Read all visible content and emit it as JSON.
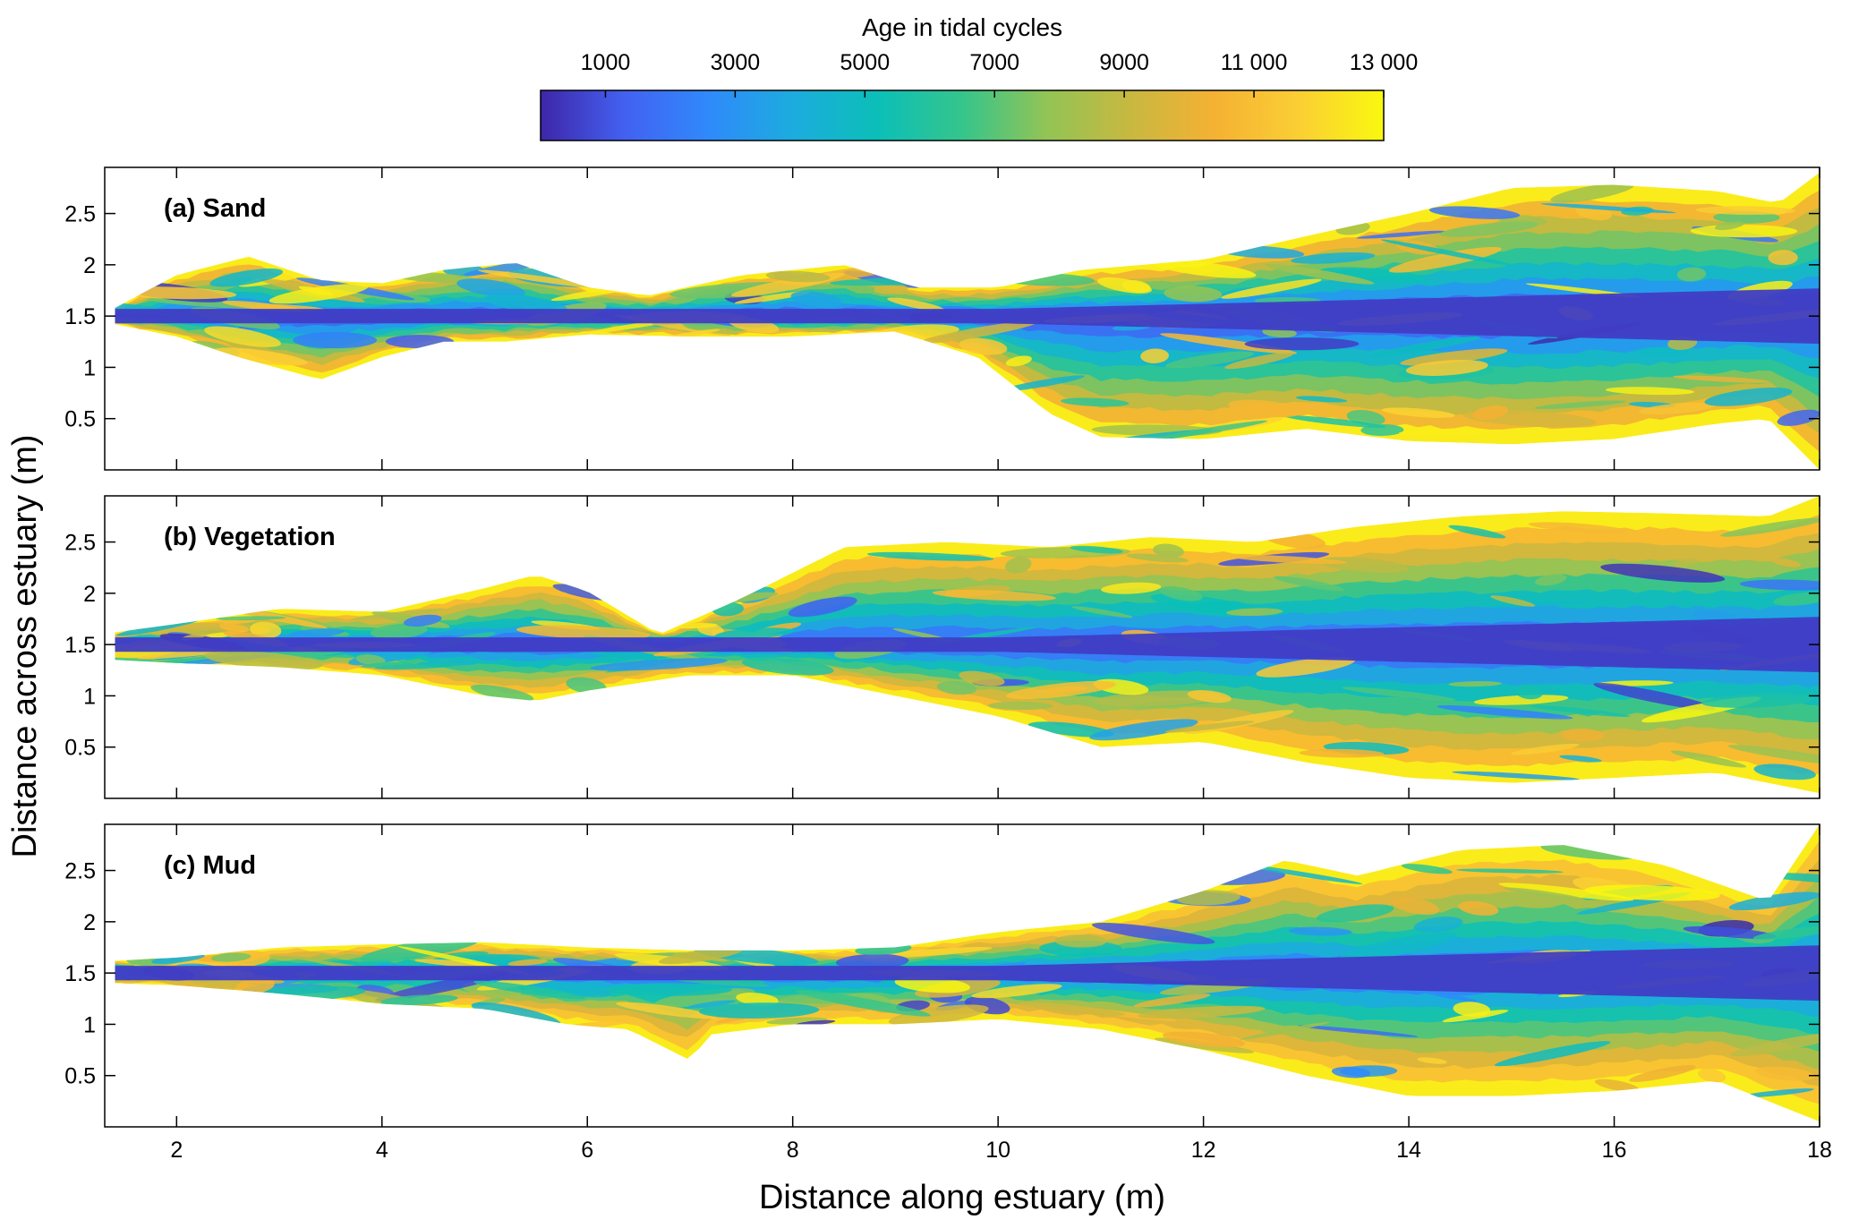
{
  "chart_data": {
    "type": "heatmap",
    "colorbar": {
      "title": "Age in tidal cycles",
      "ticks": [
        1000,
        3000,
        5000,
        7000,
        9000,
        11000,
        13000
      ],
      "tick_labels": [
        "1000",
        "3000",
        "5000",
        "7000",
        "9000",
        "11 000",
        "13 000"
      ],
      "range": [
        0,
        13000
      ],
      "colormap": [
        "#3e26a8",
        "#4361f2",
        "#2f8afa",
        "#1cacde",
        "#0bbfb8",
        "#35c58c",
        "#92c455",
        "#c8b840",
        "#f5b133",
        "#fbcf34",
        "#f9f80f"
      ]
    },
    "xlabel": "Distance along estuary (m)",
    "ylabel": "Distance across estuary (m)",
    "xlim": [
      1.3,
      18
    ],
    "ylim": [
      0,
      2.95
    ],
    "xticks": [
      2,
      4,
      6,
      8,
      10,
      12,
      14,
      16,
      18
    ],
    "yticks": [
      0.5,
      1,
      1.5,
      2,
      2.5
    ],
    "ytick_labels": [
      "0.5",
      "1",
      "1.5",
      "2",
      "2.5"
    ],
    "panels": [
      {
        "label": "(a) Sand",
        "upper": [
          [
            1.4,
            1.58
          ],
          [
            2,
            1.9
          ],
          [
            2.7,
            2.08
          ],
          [
            3.4,
            1.85
          ],
          [
            4,
            1.82
          ],
          [
            4.6,
            1.95
          ],
          [
            5.3,
            2.02
          ],
          [
            6,
            1.78
          ],
          [
            6.6,
            1.7
          ],
          [
            7.5,
            1.9
          ],
          [
            8.5,
            2.0
          ],
          [
            9.2,
            1.78
          ],
          [
            10,
            1.78
          ],
          [
            10.8,
            1.95
          ],
          [
            12,
            2.05
          ],
          [
            13,
            2.28
          ],
          [
            14,
            2.5
          ],
          [
            15,
            2.75
          ],
          [
            16,
            2.78
          ],
          [
            17,
            2.72
          ],
          [
            17.6,
            2.6
          ],
          [
            18,
            2.9
          ]
        ],
        "lower": [
          [
            1.4,
            1.42
          ],
          [
            2,
            1.3
          ],
          [
            2.6,
            1.1
          ],
          [
            3.4,
            0.88
          ],
          [
            4,
            1.1
          ],
          [
            4.6,
            1.25
          ],
          [
            5.2,
            1.25
          ],
          [
            6,
            1.32
          ],
          [
            7,
            1.3
          ],
          [
            8,
            1.3
          ],
          [
            9,
            1.35
          ],
          [
            9.8,
            1.1
          ],
          [
            10.5,
            0.55
          ],
          [
            11,
            0.32
          ],
          [
            12,
            0.3
          ],
          [
            13,
            0.4
          ],
          [
            14,
            0.28
          ],
          [
            15,
            0.25
          ],
          [
            16,
            0.3
          ],
          [
            17,
            0.45
          ],
          [
            17.5,
            0.5
          ],
          [
            18,
            0.0
          ]
        ],
        "core_age": 500
      },
      {
        "label": "(b) Vegetation",
        "upper": [
          [
            1.4,
            1.62
          ],
          [
            2,
            1.7
          ],
          [
            3,
            1.85
          ],
          [
            4,
            1.82
          ],
          [
            5,
            2.05
          ],
          [
            5.5,
            2.18
          ],
          [
            6,
            2.02
          ],
          [
            6.7,
            1.6
          ],
          [
            7.5,
            1.95
          ],
          [
            8.5,
            2.45
          ],
          [
            9.5,
            2.5
          ],
          [
            10.5,
            2.45
          ],
          [
            11.5,
            2.55
          ],
          [
            12.5,
            2.5
          ],
          [
            13.5,
            2.65
          ],
          [
            14.5,
            2.75
          ],
          [
            15.5,
            2.8
          ],
          [
            16.5,
            2.78
          ],
          [
            17.5,
            2.75
          ],
          [
            18,
            2.95
          ]
        ],
        "lower": [
          [
            1.4,
            1.35
          ],
          [
            2,
            1.32
          ],
          [
            3,
            1.28
          ],
          [
            4,
            1.2
          ],
          [
            5,
            1.0
          ],
          [
            5.5,
            0.95
          ],
          [
            6,
            1.05
          ],
          [
            7,
            1.2
          ],
          [
            8,
            1.2
          ],
          [
            9,
            1.0
          ],
          [
            10,
            0.8
          ],
          [
            11,
            0.5
          ],
          [
            12,
            0.55
          ],
          [
            13,
            0.35
          ],
          [
            14,
            0.2
          ],
          [
            15,
            0.15
          ],
          [
            16,
            0.2
          ],
          [
            17,
            0.25
          ],
          [
            18,
            0.05
          ]
        ],
        "core_age": 500
      },
      {
        "label": "(c) Mud",
        "upper": [
          [
            1.4,
            1.62
          ],
          [
            2,
            1.65
          ],
          [
            3,
            1.75
          ],
          [
            4,
            1.78
          ],
          [
            5,
            1.8
          ],
          [
            6,
            1.75
          ],
          [
            7,
            1.72
          ],
          [
            8,
            1.72
          ],
          [
            9,
            1.75
          ],
          [
            10,
            1.9
          ],
          [
            11,
            2.0
          ],
          [
            12,
            2.3
          ],
          [
            12.8,
            2.6
          ],
          [
            13.5,
            2.45
          ],
          [
            14.5,
            2.7
          ],
          [
            15.5,
            2.75
          ],
          [
            16.5,
            2.55
          ],
          [
            17.5,
            2.2
          ],
          [
            18,
            2.95
          ]
        ],
        "lower": [
          [
            1.4,
            1.4
          ],
          [
            2,
            1.38
          ],
          [
            3,
            1.3
          ],
          [
            4,
            1.2
          ],
          [
            5,
            1.15
          ],
          [
            5.8,
            1.0
          ],
          [
            6.4,
            0.95
          ],
          [
            7,
            0.65
          ],
          [
            7.2,
            0.9
          ],
          [
            8,
            1.0
          ],
          [
            9,
            1.0
          ],
          [
            10,
            1.05
          ],
          [
            11,
            0.95
          ],
          [
            12,
            0.75
          ],
          [
            13,
            0.5
          ],
          [
            14,
            0.3
          ],
          [
            15,
            0.3
          ],
          [
            16,
            0.35
          ],
          [
            17,
            0.45
          ],
          [
            18,
            0.05
          ]
        ],
        "core_age": 500
      }
    ]
  }
}
